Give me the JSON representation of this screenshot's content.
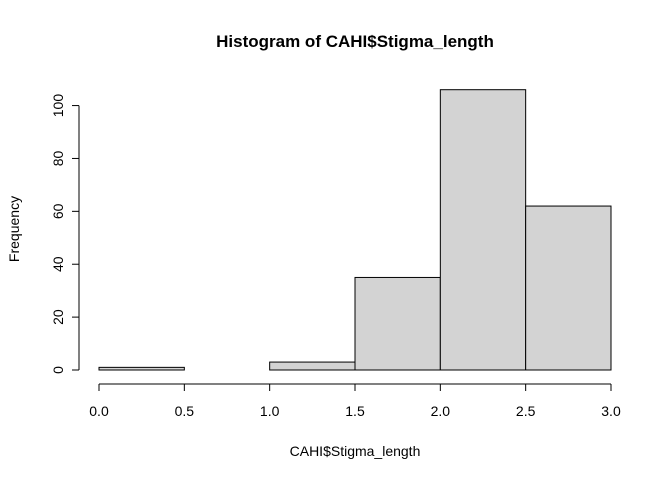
{
  "chart_data": {
    "type": "bar",
    "title": "Histogram of CAHI$Stigma_length",
    "xlabel": "CAHI$Stigma_length",
    "ylabel": "Frequency",
    "bins": [
      {
        "from": 0.0,
        "to": 0.5,
        "count": 1
      },
      {
        "from": 0.5,
        "to": 1.0,
        "count": 0
      },
      {
        "from": 1.0,
        "to": 1.5,
        "count": 3
      },
      {
        "from": 1.5,
        "to": 2.0,
        "count": 35
      },
      {
        "from": 2.0,
        "to": 2.5,
        "count": 106
      },
      {
        "from": 2.5,
        "to": 3.0,
        "count": 62
      }
    ],
    "xlim": [
      0,
      3
    ],
    "ylim": [
      0,
      106
    ],
    "x_ticks": [
      "0.0",
      "0.5",
      "1.0",
      "1.5",
      "2.0",
      "2.5",
      "3.0"
    ],
    "y_ticks": [
      "0",
      "20",
      "40",
      "60",
      "80",
      "100"
    ],
    "bar_fill": "#d3d3d3",
    "bar_stroke": "#000000",
    "grid": false,
    "legend": "none"
  }
}
